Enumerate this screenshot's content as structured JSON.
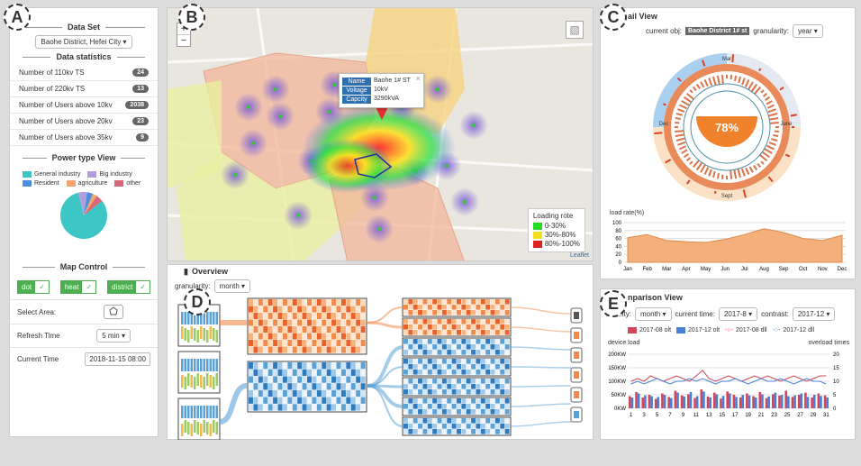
{
  "labels": {
    "a": "A",
    "b": "B",
    "c": "C",
    "d": "D",
    "e": "E"
  },
  "left": {
    "dataset_title": "Data Set",
    "dataset_value": "Baohe District, Hefei City",
    "stats_title": "Data statistics",
    "stats": [
      {
        "label": "Number of 110kv TS",
        "value": "24"
      },
      {
        "label": "Number of 220kv TS",
        "value": "13"
      },
      {
        "label": "Number of Users above 10kv",
        "value": "2038"
      },
      {
        "label": "Number of Users above 20kv",
        "value": "23"
      },
      {
        "label": "Number of Users above 35kv",
        "value": "9"
      }
    ],
    "power_title": "Power type View",
    "power_legend": [
      {
        "label": "General industry",
        "color": "#3cc6c6"
      },
      {
        "label": "Big industry",
        "color": "#b39ddb"
      },
      {
        "label": "Resident",
        "color": "#4a90e2"
      },
      {
        "label": "agriculture",
        "color": "#f5a66b"
      },
      {
        "label": "other",
        "color": "#d9687a"
      }
    ],
    "pie": [
      0.82,
      0.06,
      0.04,
      0.03,
      0.05
    ],
    "map_title": "Map Control",
    "btn_dot": "dot",
    "btn_heat": "heat",
    "btn_district": "district",
    "check": "✓",
    "select_area": "Select Area:",
    "refresh_label": "Refresh Time",
    "refresh_value": "5 min",
    "current_label": "Current Time",
    "current_value": "2018-11-15 08:00"
  },
  "map": {
    "zoom_in": "+",
    "zoom_out": "−",
    "layers_icon": "▧",
    "popup": [
      {
        "k": "Name",
        "v": "Baohe 1# ST"
      },
      {
        "k": "Voltage",
        "v": "10kV"
      },
      {
        "k": "Capcity",
        "v": "3290kVA"
      }
    ],
    "popup_close": "×",
    "legend_title": "Loading rote",
    "legend": [
      {
        "label": "0-30%",
        "color": "#22dd22"
      },
      {
        "label": "30%-80%",
        "color": "#f0e020"
      },
      {
        "label": "80%-100%",
        "color": "#e02020"
      }
    ],
    "attribution": "Leaflet"
  },
  "detail": {
    "title": "ail View",
    "current_label": "current obj:",
    "current_value": "Baohe District 1# st",
    "gran_label": "granularity:",
    "gran_value": "year",
    "percent": "78%",
    "ring_labels": {
      "top": "Mar",
      "left": "Dec",
      "right": "June",
      "bottom": "Sept"
    },
    "load_label": "load rate(%)",
    "yticks": [
      "100",
      "80",
      "60",
      "40",
      "20",
      "0"
    ],
    "months": [
      "Jan",
      "Feb",
      "Mar",
      "Apr",
      "May",
      "Jun",
      "Jul",
      "Aug",
      "Sep",
      "Oct",
      "Nov",
      "Dec"
    ],
    "load_values": [
      62,
      70,
      55,
      52,
      50,
      58,
      70,
      85,
      75,
      60,
      55,
      68
    ]
  },
  "overview": {
    "title": "Overview",
    "gran_label": "granularity:",
    "gran_value": "month"
  },
  "comparison": {
    "title": "nparison View",
    "gran_label": "nularity:",
    "gran_value": "month",
    "cur_label": "current time:",
    "cur_value": "2017-8",
    "con_label": "contrast:",
    "con_value": "2017-12",
    "legend": [
      {
        "label": "2017-08 olt",
        "color": "#d2455a"
      },
      {
        "label": "2017-12 olt",
        "color": "#4a7fd6"
      },
      {
        "label": "2017-08 dll",
        "color": "#d2455a"
      },
      {
        "label": "2017-12 dll",
        "color": "#4a7fd6"
      }
    ],
    "left_axis": "device load",
    "right_axis": "overload times",
    "yl": [
      "200KW",
      "150KW",
      "100KW",
      "50KW",
      "0KW"
    ],
    "yr": [
      "20",
      "15",
      "10",
      "5",
      "0"
    ],
    "xticks": [
      "1",
      "3",
      "5",
      "7",
      "9",
      "11",
      "13",
      "15",
      "17",
      "19",
      "21",
      "23",
      "25",
      "27",
      "29",
      "31"
    ],
    "bars_a": [
      45,
      60,
      40,
      50,
      35,
      55,
      42,
      65,
      48,
      52,
      38,
      70,
      44,
      58,
      36,
      62,
      50,
      40,
      55,
      45,
      60,
      38,
      52,
      47,
      65,
      42,
      50,
      58,
      40,
      55,
      48
    ],
    "bars_b": [
      40,
      55,
      48,
      45,
      42,
      50,
      38,
      58,
      44,
      60,
      45,
      62,
      40,
      52,
      46,
      55,
      42,
      50,
      48,
      40,
      52,
      44,
      58,
      50,
      45,
      48,
      55,
      42,
      50,
      46,
      40
    ],
    "line_a": [
      10,
      11,
      10,
      12,
      11,
      10,
      11,
      12,
      11,
      10,
      12,
      14,
      11,
      10,
      11,
      12,
      11,
      10,
      11,
      12,
      11,
      12,
      11,
      10,
      11,
      12,
      11,
      10,
      11,
      12,
      12
    ],
    "line_b": [
      9,
      10,
      9,
      10,
      11,
      10,
      9,
      10,
      10,
      11,
      10,
      11,
      10,
      9,
      10,
      10,
      11,
      10,
      9,
      10,
      11,
      10,
      10,
      11,
      10,
      9,
      10,
      11,
      10,
      10,
      9
    ]
  }
}
